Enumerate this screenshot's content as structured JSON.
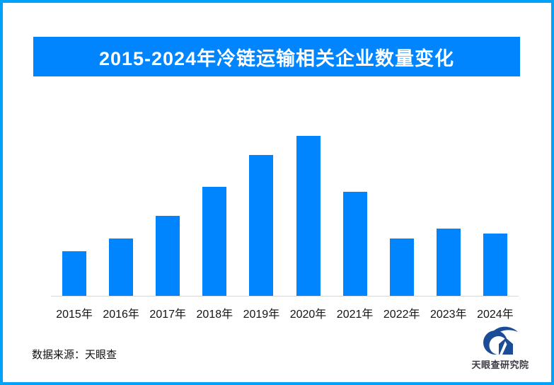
{
  "page": {
    "border_color": "#00A2F8",
    "background_color": "#FFFFFF"
  },
  "header": {
    "title": "2015-2024年冷链运输相关企业数量变化",
    "banner_color": "#0085FF",
    "title_text_color": "#FFFFFF"
  },
  "chart_data": {
    "type": "bar",
    "title": "2015-2024年冷链运输相关企业数量变化",
    "categories": [
      "2015年",
      "2016年",
      "2017年",
      "2018年",
      "2019年",
      "2020年",
      "2021年",
      "2022年",
      "2023年",
      "2024年"
    ],
    "values": [
      28,
      36,
      50,
      68,
      88,
      100,
      65,
      36,
      42,
      39
    ],
    "value_note": "no numeric axis or data labels are shown in the image; values are relative bar heights estimated from pixels, peak year 2020 = 100",
    "bar_color": "#0085FF",
    "axis_line_color": "#D8D8D8",
    "xlabel": "",
    "ylabel": "",
    "ylim": [
      0,
      110
    ],
    "grid": false,
    "legend": false
  },
  "footer": {
    "source_text": "数据来源：天眼查",
    "logo_text": "天眼查研究院",
    "logo_primary_color": "#1B4C97"
  }
}
